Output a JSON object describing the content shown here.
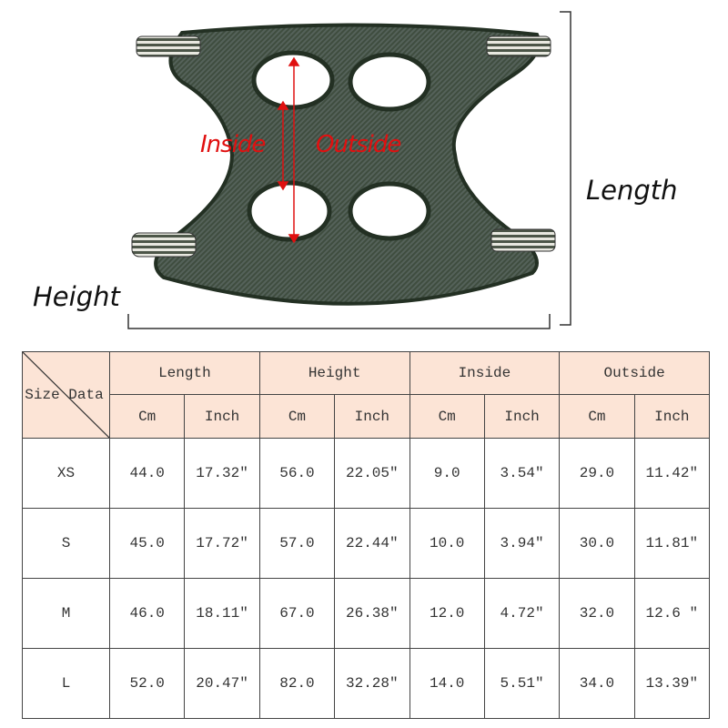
{
  "diagram": {
    "labels": {
      "length": "Length",
      "height": "Height",
      "inside": "Inside",
      "outside": "Outside"
    },
    "colors": {
      "fabric": "#3c4a3c",
      "trim": "#263326",
      "arrow": "#e01010"
    }
  },
  "table": {
    "corner_label": "Size Data",
    "groups": [
      "Length",
      "Height",
      "Inside",
      "Outside"
    ],
    "units": [
      "Cm",
      "Inch",
      "Cm",
      "Inch",
      "Cm",
      "Inch",
      "Cm",
      "Inch"
    ],
    "header_color": "#fce4d6",
    "rows": [
      {
        "size": "XS",
        "values": [
          "44.0",
          "17.32″",
          "56.0",
          "22.05″",
          "9.0",
          "3.54″",
          "29.0",
          "11.42″"
        ]
      },
      {
        "size": "S",
        "values": [
          "45.0",
          "17.72″",
          "57.0",
          "22.44″",
          "10.0",
          "3.94″",
          "30.0",
          "11.81″"
        ]
      },
      {
        "size": "M",
        "values": [
          "46.0",
          "18.11″",
          "67.0",
          "26.38″",
          "12.0",
          "4.72″",
          "32.0",
          "12.6 ″"
        ]
      },
      {
        "size": "L",
        "values": [
          "52.0",
          "20.47″",
          "82.0",
          "32.28″",
          "14.0",
          "5.51″",
          "34.0",
          "13.39″"
        ]
      }
    ]
  }
}
